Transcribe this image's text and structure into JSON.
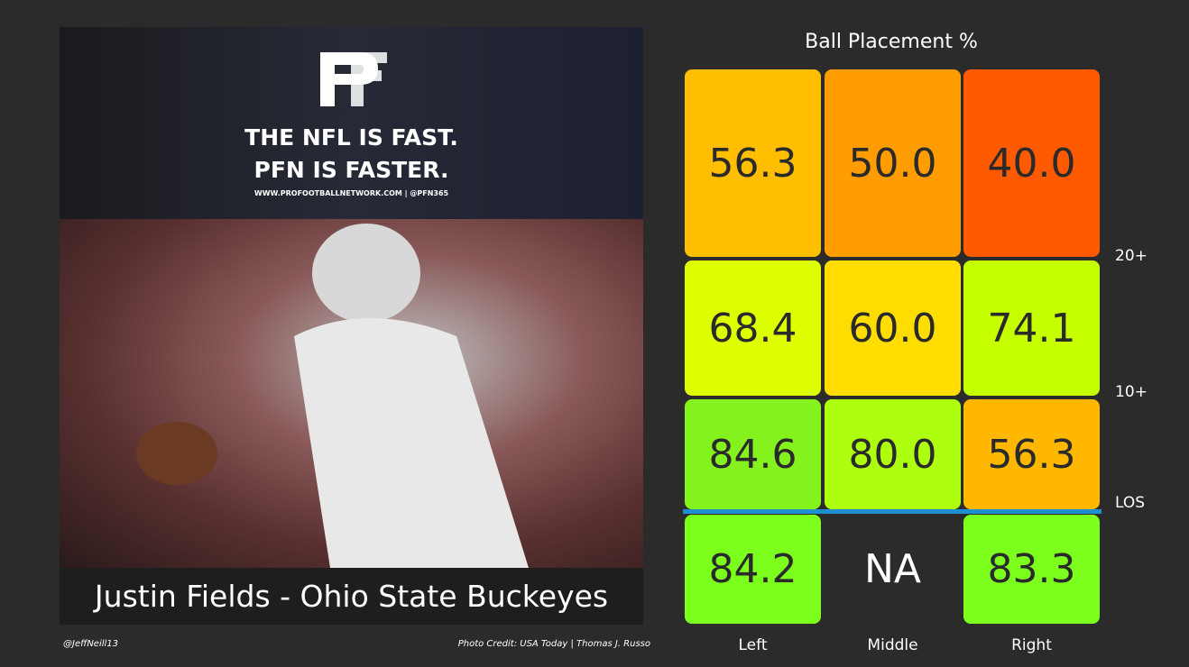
{
  "photo_panel": {
    "banner": [
      "THE NFL IS FAST.",
      "PFN IS FASTER.",
      "WWW.PROFOOTBALLNETWORK.COM | @PFN365"
    ],
    "caption": "Justin Fields - Ohio State Buckeyes"
  },
  "footer": {
    "author": "@JeffNeill13",
    "credit": "Photo Credit: USA Today | Thomas J. Russo"
  },
  "heatmap": {
    "title": "Ball Placement %",
    "columns": [
      "Left",
      "Middle",
      "Right"
    ],
    "row_labels": [
      "20+",
      "10+",
      "LOS"
    ],
    "rows": [
      [
        {
          "text": "56.3",
          "color": "#ffbf00"
        },
        {
          "text": "50.0",
          "color": "#ff9d00"
        },
        {
          "text": "40.0",
          "color": "#ff5a00"
        }
      ],
      [
        {
          "text": "68.4",
          "color": "#ddff00"
        },
        {
          "text": "60.0",
          "color": "#ffdd00"
        },
        {
          "text": "74.1",
          "color": "#c6ff00"
        }
      ],
      [
        {
          "text": "84.6",
          "color": "#84f21c"
        },
        {
          "text": "80.0",
          "color": "#adff0f"
        },
        {
          "text": "56.3",
          "color": "#ffb700"
        }
      ],
      [
        {
          "text": "84.2",
          "color": "#7dff1e"
        },
        {
          "text": "NA",
          "color": null
        },
        {
          "text": "83.3",
          "color": "#7dff1e"
        }
      ]
    ]
  }
}
